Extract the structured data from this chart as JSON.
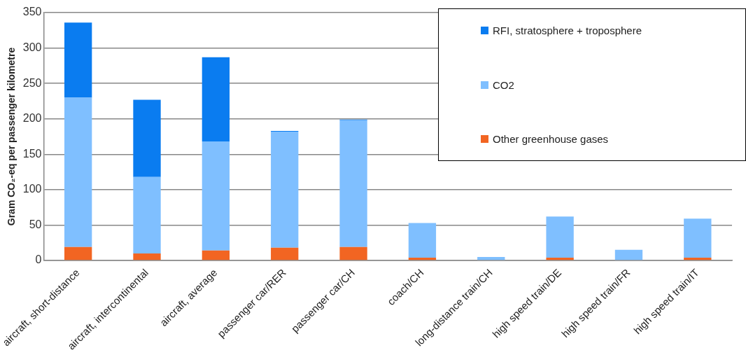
{
  "chart_data": {
    "type": "bar",
    "stacked": true,
    "ylabel": "Gram CO₂-eq per passenger kilometre",
    "categories": [
      "aircraft, short-distance",
      "aircraft, intercontinental",
      "aircraft, average",
      "passenger car/RER",
      "passenger car/CH",
      "coach/CH",
      "long-distance train/CH",
      "high speed train/DE",
      "high speed train/FR",
      "high speed train/IT"
    ],
    "series": [
      {
        "name": "Other greenhouse gases",
        "color": "#f26522",
        "values": [
          19,
          10,
          14,
          18,
          19,
          4,
          null,
          4,
          null,
          4
        ]
      },
      {
        "name": "CO2",
        "color": "#7fbfff",
        "values": [
          211,
          108,
          154,
          164,
          179,
          49,
          5,
          58,
          15,
          55
        ]
      },
      {
        "name": "RFI, stratosphere + troposphere",
        "color": "#0a7cf0",
        "values": [
          106,
          109,
          119,
          1,
          1,
          0,
          0,
          0,
          0,
          0
        ]
      }
    ],
    "ylim": [
      0,
      350
    ],
    "yticks": [
      0,
      50,
      100,
      150,
      200,
      250,
      300,
      350
    ],
    "grid": "y",
    "legend": "top right"
  }
}
